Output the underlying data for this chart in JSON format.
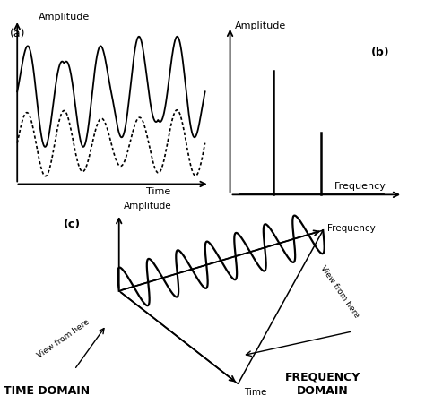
{
  "background_color": "#ffffff",
  "label_a": "(a)",
  "label_b": "(b)",
  "label_c": "(c)",
  "amplitude_label": "Amplitude",
  "time_label": "Time",
  "frequency_label": "Frequency",
  "time_domain_label": "TIME DOMAIN",
  "frequency_domain_label": "FREQUENCY\nDOMAIN",
  "view_from_here_label": "View from here",
  "text_color": "#000000"
}
